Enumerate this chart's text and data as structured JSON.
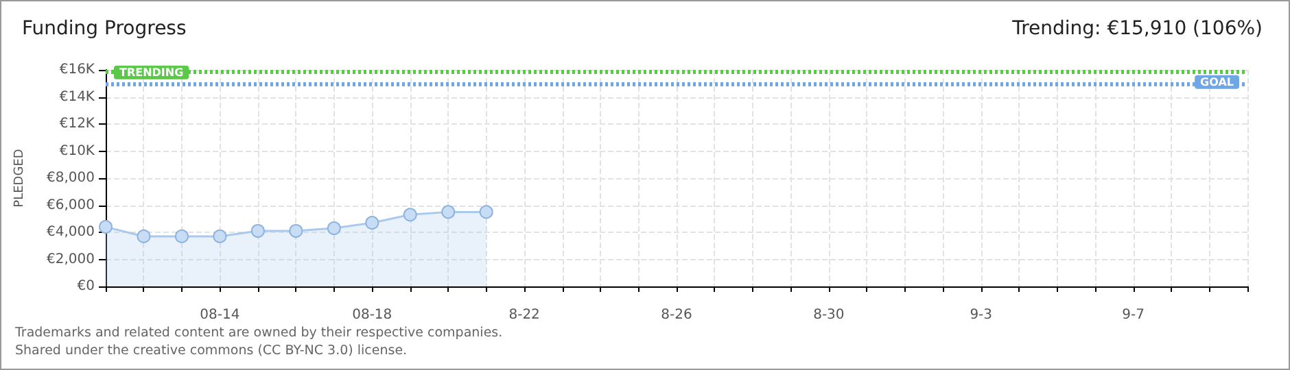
{
  "chart_data": {
    "type": "area",
    "title": "Funding Progress",
    "subtitle": "Trending: €15,910 (106%)",
    "ylabel": "PLEDGED",
    "x": [
      "--08-11",
      "--08-12",
      "--08-13",
      "--08-14",
      "--08-15",
      "--08-16",
      "--08-17",
      "--08-18",
      "--08-19",
      "--08-20",
      "--08-21"
    ],
    "series": [
      {
        "color": "#a9c9ee",
        "values": [
          4400,
          3700,
          3700,
          3700,
          4100,
          4100,
          4300,
          4700,
          5300,
          5500,
          5500
        ]
      }
    ],
    "xlim": [
      "--08-11",
      "--09-10"
    ],
    "xticks": [
      {
        "value": "--08-14",
        "label": "08-14"
      },
      {
        "value": "--08-18",
        "label": "08-18"
      },
      {
        "value": "--08-22",
        "label": "8-22"
      },
      {
        "value": "--08-26",
        "label": "8-26"
      },
      {
        "value": "--08-30",
        "label": "8-30"
      },
      {
        "value": "--09-03",
        "label": "9-3"
      },
      {
        "value": "--09-07",
        "label": "9-7"
      }
    ],
    "ylim": [
      0,
      16000
    ],
    "yticks": [
      {
        "value": 0,
        "label": "€0"
      },
      {
        "value": 2000,
        "label": "€2,000"
      },
      {
        "value": 4000,
        "label": "€4,000"
      },
      {
        "value": 6000,
        "label": "€6,000"
      },
      {
        "value": 8000,
        "label": "€8,000"
      },
      {
        "value": 10000,
        "label": "€10K"
      },
      {
        "value": 12000,
        "label": "€12K"
      },
      {
        "value": 14000,
        "label": "€14K"
      },
      {
        "value": 16000,
        "label": "€16K"
      }
    ],
    "ref_lines": [
      {
        "axis": "y",
        "value": 15910,
        "label": "TRENDING",
        "color": "#5cc84a",
        "line_style": "dotted"
      },
      {
        "axis": "y",
        "value": 15000,
        "label": "GOAL",
        "color": "#6ea6e6",
        "line_style": "dotted"
      }
    ],
    "annotations": [
      "Trademarks and related content are owned by their respective companies.",
      "Shared under the creative commons (CC BY-NC 3.0) license."
    ],
    "grid": true,
    "marker": "circle"
  }
}
